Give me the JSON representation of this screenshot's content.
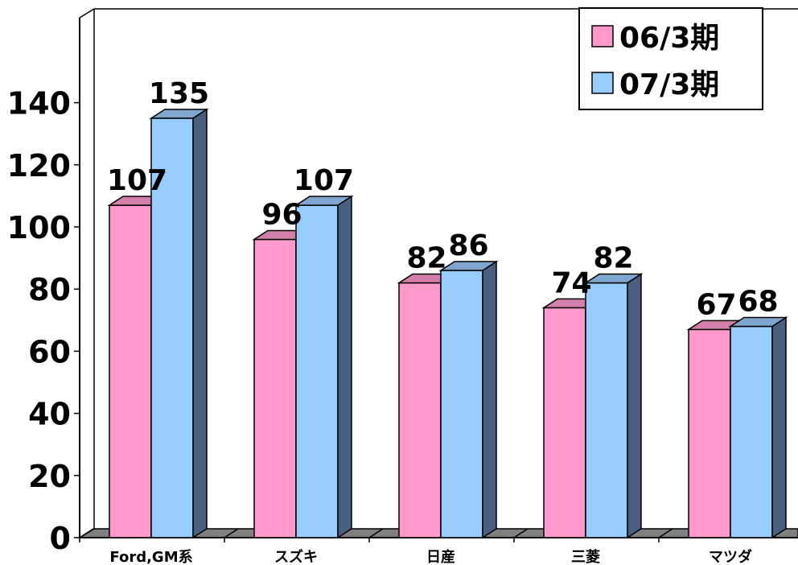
{
  "chart_data": {
    "type": "bar",
    "categories": [
      "Ford,GM系",
      "スズキ",
      "日産",
      "三菱",
      "マツダ"
    ],
    "series": [
      {
        "name": "06/3期",
        "values": [
          107,
          96,
          82,
          74,
          67
        ],
        "color": "#FF99CC",
        "side_color": "#B86E93",
        "top_color": "#D47FA9"
      },
      {
        "name": "07/3期",
        "values": [
          135,
          107,
          86,
          82,
          68
        ],
        "color": "#99CCFF",
        "side_color": "#4A5F80",
        "top_color": "#7FA6CF"
      }
    ],
    "ylim": [
      0,
      140
    ],
    "yticks": [
      0,
      20,
      40,
      60,
      80,
      100,
      120,
      140
    ],
    "data_labels": true,
    "legend_position": "top-right",
    "grid": false,
    "floor_color": "#808080"
  }
}
